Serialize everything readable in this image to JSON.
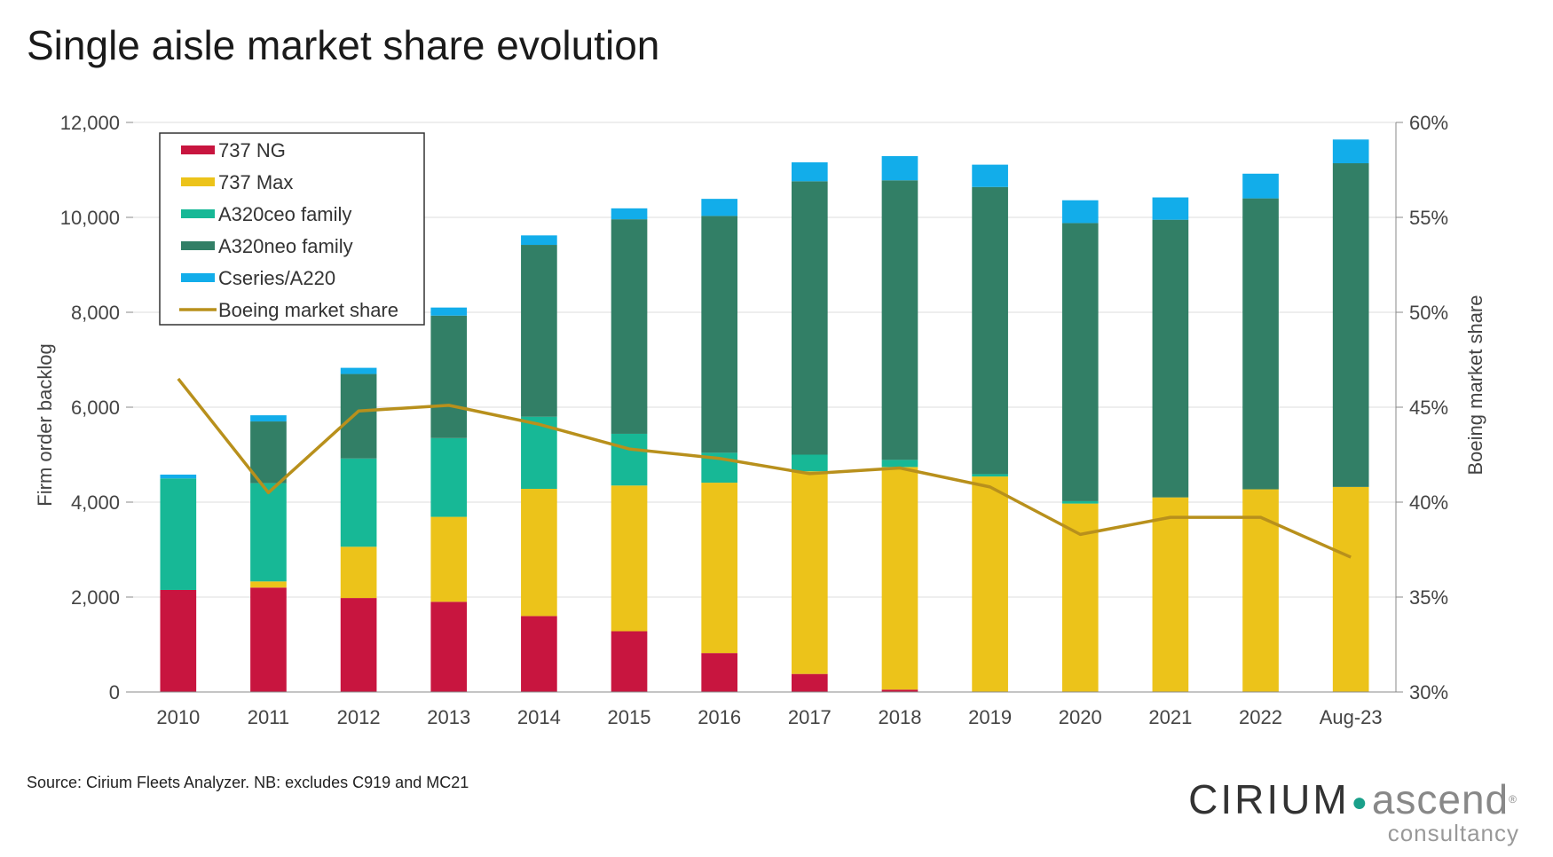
{
  "title": "Single aisle market share evolution",
  "source": "Source: Cirium Fleets Analyzer. NB:   excludes C919 and MC21",
  "logo": {
    "main_left": "CIRIUM",
    "main_right": "ascend",
    "registered": "®",
    "sub": "consultancy",
    "dot_color": "#1aa08a"
  },
  "chart_data": {
    "type": "bar",
    "stacked": true,
    "categories": [
      "2010",
      "2011",
      "2012",
      "2013",
      "2014",
      "2015",
      "2016",
      "2017",
      "2018",
      "2019",
      "2020",
      "2021",
      "2022",
      "Aug-23"
    ],
    "ylabel": "Firm order backlog",
    "y2label": "Boeing market share",
    "ylim": [
      0,
      12000
    ],
    "y2lim": [
      0.3,
      0.6
    ],
    "yticks": [
      "0",
      "2,000",
      "4,000",
      "6,000",
      "8,000",
      "10,000",
      "12,000"
    ],
    "y2ticks": [
      "30%",
      "35%",
      "40%",
      "45%",
      "50%",
      "55%",
      "60%"
    ],
    "grid": true,
    "legend_position": "top-left",
    "series": [
      {
        "name": "737 NG",
        "color": "#c8153f",
        "values": [
          2150,
          2200,
          1980,
          1900,
          1600,
          1280,
          820,
          380,
          50,
          0,
          0,
          0,
          0,
          0
        ]
      },
      {
        "name": "737 Max",
        "color": "#ecc31a",
        "values": [
          0,
          130,
          1080,
          1790,
          2680,
          3070,
          3590,
          4270,
          4690,
          4540,
          3970,
          4100,
          4270,
          4320
        ]
      },
      {
        "name": "A320ceo family",
        "color": "#17b896",
        "values": [
          2350,
          2070,
          1860,
          1660,
          1520,
          1090,
          630,
          350,
          150,
          50,
          50,
          0,
          0,
          0
        ]
      },
      {
        "name": "A320neo family",
        "color": "#327f66",
        "values": [
          0,
          1300,
          1780,
          2580,
          3620,
          4520,
          4990,
          5760,
          5890,
          6050,
          5860,
          5850,
          6130,
          6820
        ]
      },
      {
        "name": "Cseries/A220",
        "color": "#12adea",
        "values": [
          80,
          130,
          130,
          170,
          200,
          230,
          360,
          400,
          510,
          470,
          480,
          470,
          520,
          500
        ]
      }
    ],
    "line_series": {
      "name": "Boeing market share",
      "color": "#b8901c",
      "axis": "right",
      "values": [
        0.465,
        0.405,
        0.448,
        0.451,
        0.441,
        0.428,
        0.423,
        0.415,
        0.418,
        0.408,
        0.383,
        0.392,
        0.392,
        0.371
      ]
    }
  }
}
